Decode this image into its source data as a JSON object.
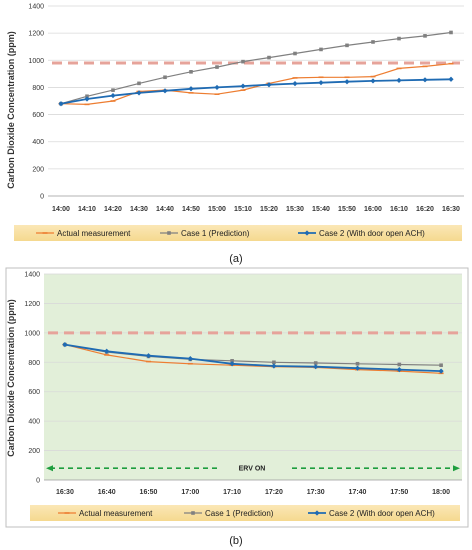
{
  "chart_data": [
    {
      "type": "line",
      "panel_label": "(a)",
      "ylabel": "Carbon Dioxide Concentration (ppm)",
      "ylim": [
        0,
        1400
      ],
      "yticks": [
        0,
        200,
        400,
        600,
        800,
        1000,
        1200,
        1400
      ],
      "categories": [
        "14:00",
        "14:10",
        "14:20",
        "14:30",
        "14:40",
        "14:50",
        "15:00",
        "15:10",
        "15:20",
        "15:30",
        "15:40",
        "15:50",
        "16:00",
        "16:10",
        "16:20",
        "16:30"
      ],
      "threshold": 980,
      "grid": "horizontal",
      "legend_position": "bottom",
      "series": [
        {
          "name": "Actual measurement",
          "color": "#ed7d31",
          "marker": "dash",
          "values": [
            680,
            675,
            700,
            770,
            780,
            760,
            750,
            780,
            830,
            870,
            875,
            875,
            880,
            940,
            955,
            975
          ]
        },
        {
          "name": "Case 1 (Prediction)",
          "color": "#808080",
          "marker": "square",
          "values": [
            680,
            735,
            780,
            830,
            875,
            915,
            950,
            990,
            1020,
            1050,
            1080,
            1110,
            1135,
            1160,
            1180,
            1205
          ]
        },
        {
          "name": "Case 2 (With door open ACH)",
          "color": "#1f6bb3",
          "marker": "diamond",
          "values": [
            680,
            715,
            740,
            760,
            775,
            790,
            800,
            810,
            820,
            828,
            835,
            842,
            848,
            852,
            856,
            860
          ]
        }
      ]
    },
    {
      "type": "line",
      "panel_label": "(b)",
      "ylabel": "Carbon Dioxide Concentration (ppm)",
      "ylim": [
        0,
        1400
      ],
      "yticks": [
        0,
        200,
        400,
        600,
        800,
        1000,
        1200,
        1400
      ],
      "categories": [
        "16:30",
        "16:40",
        "16:50",
        "17:00",
        "17:10",
        "17:20",
        "17:30",
        "17:40",
        "17:50",
        "18:00"
      ],
      "threshold": 1000,
      "annotation": "ERV ON",
      "annotation_level": 80,
      "grid": "horizontal",
      "legend_position": "bottom",
      "series": [
        {
          "name": "Actual measurement",
          "color": "#ed7d31",
          "marker": "dash",
          "values": [
            920,
            850,
            805,
            790,
            780,
            770,
            765,
            750,
            740,
            725
          ]
        },
        {
          "name": "Case 1 (Prediction)",
          "color": "#808080",
          "marker": "square",
          "values": [
            920,
            870,
            840,
            820,
            810,
            800,
            795,
            790,
            785,
            780
          ]
        },
        {
          "name": "Case 2 (With door open ACH)",
          "color": "#1f6bb3",
          "marker": "diamond",
          "values": [
            920,
            875,
            845,
            825,
            790,
            775,
            770,
            760,
            750,
            740
          ]
        }
      ]
    }
  ]
}
